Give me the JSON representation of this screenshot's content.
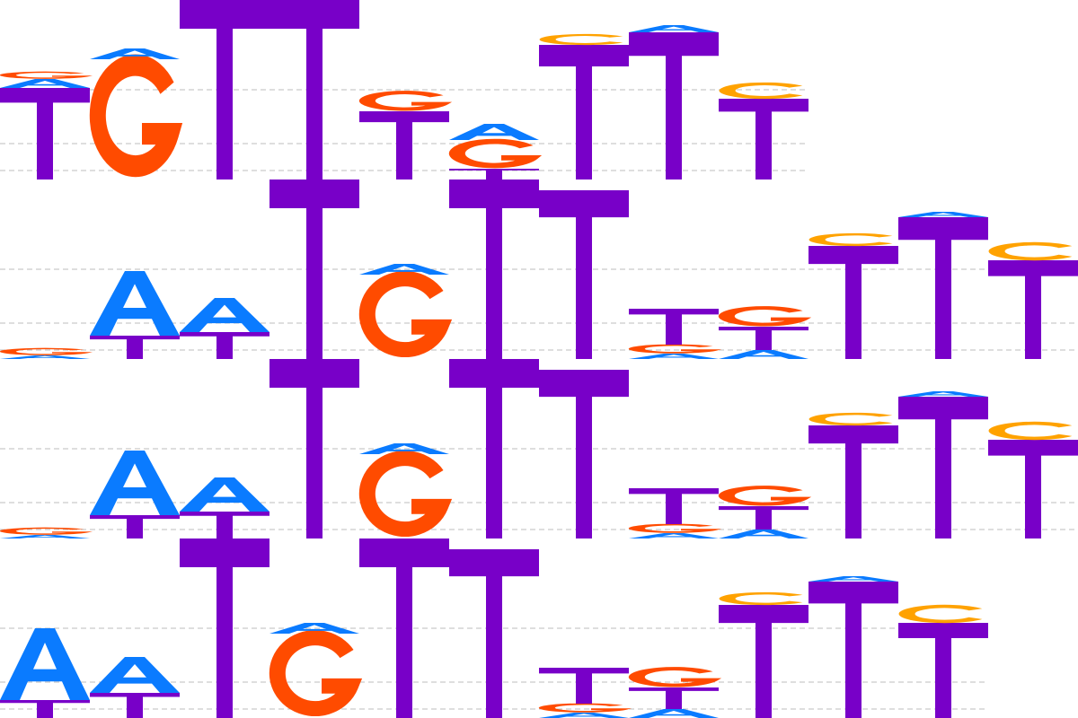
{
  "colors": {
    "A": "#0a7bff",
    "C": "#ffa200",
    "G": "#ff4b00",
    "T": "#7800c8",
    "guide": "#bdbdbd"
  },
  "logos": [
    {
      "name": "motif-logo-1",
      "positions": [
        [
          [
            "G",
            0.04
          ],
          [
            "A",
            0.05
          ],
          [
            "T",
            0.51
          ]
        ],
        [
          [
            "A",
            0.06
          ],
          [
            "G",
            0.67
          ]
        ],
        [
          [
            "T",
            1.0
          ]
        ],
        [
          [
            "T",
            1.0
          ]
        ],
        [
          [
            "G",
            0.11
          ],
          [
            "T",
            0.38
          ]
        ],
        [
          [
            "A",
            0.09
          ],
          [
            "G",
            0.16
          ],
          [
            "T",
            0.06
          ]
        ],
        [
          [
            "C",
            0.06
          ],
          [
            "T",
            0.75
          ]
        ],
        [
          [
            "A",
            0.04
          ],
          [
            "T",
            0.82
          ]
        ],
        [
          [
            "C",
            0.09
          ],
          [
            "T",
            0.45
          ]
        ]
      ]
    },
    {
      "name": "motif-logo-2",
      "positions": [
        [
          [
            "G",
            0.04
          ],
          [
            "A",
            0.02
          ]
        ],
        [
          [
            "A",
            0.36
          ],
          [
            "T",
            0.13
          ]
        ],
        [
          [
            "A",
            0.19
          ],
          [
            "T",
            0.15
          ]
        ],
        [
          [
            "T",
            1.0
          ]
        ],
        [
          [
            "A",
            0.06
          ],
          [
            "G",
            0.47
          ]
        ],
        [
          [
            "T",
            1.0
          ]
        ],
        [
          [
            "T",
            0.94
          ]
        ],
        [
          [
            "T",
            0.2
          ],
          [
            "G",
            0.05
          ],
          [
            "A",
            0.03
          ]
        ],
        [
          [
            "G",
            0.11
          ],
          [
            "T",
            0.13
          ],
          [
            "A",
            0.05
          ]
        ],
        [
          [
            "C",
            0.07
          ],
          [
            "T",
            0.63
          ]
        ],
        [
          [
            "A",
            0.03
          ],
          [
            "T",
            0.79
          ]
        ],
        [
          [
            "C",
            0.1
          ],
          [
            "T",
            0.55
          ]
        ]
      ]
    },
    {
      "name": "motif-logo-3",
      "positions": [
        [
          [
            "G",
            0.04
          ],
          [
            "A",
            0.02
          ]
        ],
        [
          [
            "A",
            0.36
          ],
          [
            "T",
            0.13
          ]
        ],
        [
          [
            "A",
            0.19
          ],
          [
            "T",
            0.15
          ]
        ],
        [
          [
            "T",
            1.0
          ]
        ],
        [
          [
            "A",
            0.06
          ],
          [
            "G",
            0.47
          ]
        ],
        [
          [
            "T",
            1.0
          ]
        ],
        [
          [
            "T",
            0.94
          ]
        ],
        [
          [
            "T",
            0.2
          ],
          [
            "G",
            0.05
          ],
          [
            "A",
            0.03
          ]
        ],
        [
          [
            "G",
            0.11
          ],
          [
            "T",
            0.13
          ],
          [
            "A",
            0.05
          ]
        ],
        [
          [
            "C",
            0.07
          ],
          [
            "T",
            0.63
          ]
        ],
        [
          [
            "A",
            0.03
          ],
          [
            "T",
            0.79
          ]
        ],
        [
          [
            "C",
            0.1
          ],
          [
            "T",
            0.55
          ]
        ]
      ]
    },
    {
      "name": "motif-logo-4",
      "positions": [
        [
          [
            "A",
            0.4
          ],
          [
            "T",
            0.1
          ]
        ],
        [
          [
            "A",
            0.2
          ],
          [
            "T",
            0.14
          ]
        ],
        [
          [
            "T",
            1.0
          ]
        ],
        [
          [
            "A",
            0.06
          ],
          [
            "G",
            0.47
          ]
        ],
        [
          [
            "T",
            1.0
          ]
        ],
        [
          [
            "T",
            0.94
          ]
        ],
        [
          [
            "T",
            0.2
          ],
          [
            "G",
            0.05
          ],
          [
            "A",
            0.03
          ]
        ],
        [
          [
            "G",
            0.11
          ],
          [
            "T",
            0.12
          ],
          [
            "A",
            0.05
          ]
        ],
        [
          [
            "C",
            0.07
          ],
          [
            "T",
            0.63
          ]
        ],
        [
          [
            "A",
            0.03
          ],
          [
            "T",
            0.76
          ]
        ],
        [
          [
            "C",
            0.1
          ],
          [
            "T",
            0.53
          ]
        ]
      ]
    }
  ]
}
